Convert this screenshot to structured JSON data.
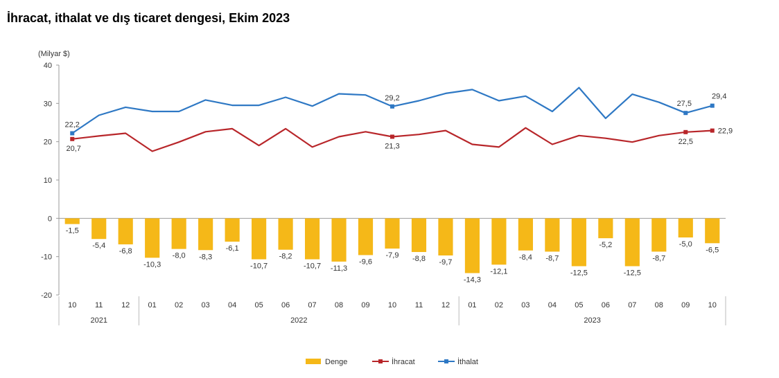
{
  "title": "İhracat, ithalat ve dış ticaret dengesi, Ekim 2023",
  "chart_data": {
    "type": "bar",
    "unit_label": "(Milyar $)",
    "ylim": [
      -20,
      40
    ],
    "yticks": [
      -20,
      -10,
      0,
      10,
      20,
      30,
      40
    ],
    "months": [
      "10",
      "11",
      "12",
      "01",
      "02",
      "03",
      "04",
      "05",
      "06",
      "07",
      "08",
      "09",
      "10",
      "11",
      "12",
      "01",
      "02",
      "03",
      "04",
      "05",
      "06",
      "07",
      "08",
      "09",
      "10"
    ],
    "year_groups": [
      {
        "label": "2021",
        "start": 0,
        "end": 2
      },
      {
        "label": "2022",
        "start": 3,
        "end": 14
      },
      {
        "label": "2023",
        "start": 15,
        "end": 24
      }
    ],
    "series": [
      {
        "name": "Denge",
        "kind": "bar",
        "color": "#F5B818",
        "values": [
          -1.5,
          -5.4,
          -6.8,
          -10.3,
          -8.0,
          -8.3,
          -6.1,
          -10.7,
          -8.2,
          -10.7,
          -11.3,
          -9.6,
          -7.9,
          -8.8,
          -9.7,
          -14.3,
          -12.1,
          -8.4,
          -8.7,
          -12.5,
          -5.2,
          -12.5,
          -8.7,
          -5.0,
          -6.5
        ],
        "labels": [
          "-1,5",
          "-5,4",
          "-6,8",
          "-10,3",
          "-8,0",
          "-8,3",
          "-6,1",
          "-10,7",
          "-8,2",
          "-10,7",
          "-11,3",
          "-9,6",
          "-7,9",
          "-8,8",
          "-9,7",
          "-14,3",
          "-12,1",
          "-8,4",
          "-8,7",
          "-12,5",
          "-5,2",
          "-12,5",
          "-8,7",
          "-5,0",
          "-6,5"
        ]
      },
      {
        "name": "İhracat",
        "kind": "line",
        "color": "#B8262A",
        "values": [
          20.7,
          21.5,
          22.2,
          17.5,
          19.9,
          22.6,
          23.4,
          19.0,
          23.4,
          18.6,
          21.3,
          22.6,
          21.3,
          21.9,
          22.9,
          19.3,
          18.6,
          23.6,
          19.3,
          21.6,
          20.9,
          19.9,
          21.6,
          22.5,
          22.9
        ],
        "markers": [
          0,
          12,
          23,
          24
        ],
        "point_labels": {
          "0": "20,7",
          "12": "21,3",
          "23": "22,5",
          "24": "22,9"
        }
      },
      {
        "name": "İthalat",
        "kind": "line",
        "color": "#2E78C4",
        "values": [
          22.2,
          26.9,
          29.0,
          27.9,
          27.9,
          30.9,
          29.5,
          29.5,
          31.6,
          29.3,
          32.5,
          32.2,
          29.2,
          30.7,
          32.6,
          33.6,
          30.7,
          31.9,
          27.9,
          34.1,
          26.1,
          32.4,
          30.3,
          27.5,
          29.4
        ],
        "markers": [
          0,
          12,
          23,
          24
        ],
        "point_labels": {
          "0": "22,2",
          "12": "29,2",
          "23": "27,5",
          "24": "29,4"
        }
      }
    ]
  }
}
